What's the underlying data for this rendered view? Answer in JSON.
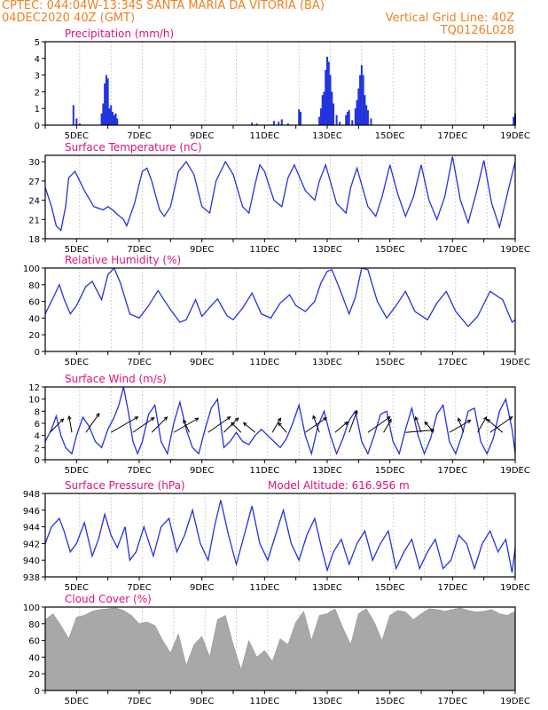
{
  "header": {
    "line1": "CPTEC:   044:04W-13:34S   SANTA MARIA DA VITORIA (BA)",
    "line2_left": "04DEC2020 40Z (GMT)",
    "line2_right": "Vertical Grid Line: 40Z",
    "line3_right": "TQ0126L028"
  },
  "colors": {
    "header": "#f08020",
    "title": "#e0107a",
    "line": "#2233dd",
    "cloud": "#a8a8a8",
    "arrow": "#000000"
  },
  "chart_data": [
    {
      "type": "bar",
      "title": "Precipitation (mm/h)",
      "x_range": [
        "04DEC",
        "19DEC"
      ],
      "x_ticks": [
        "5DEC",
        "7DEC",
        "9DEC",
        "11DEC",
        "13DEC",
        "15DEC",
        "17DEC",
        "19DEC"
      ],
      "ylim": [
        0,
        5
      ],
      "y_ticks": [
        "0",
        "1",
        "2",
        "3",
        "4",
        "5"
      ],
      "x": [
        4.9,
        5.0,
        5.1,
        5.8,
        5.85,
        5.9,
        5.95,
        6.0,
        6.05,
        6.1,
        6.15,
        6.2,
        6.25,
        6.3,
        10.6,
        10.75,
        11.3,
        11.45,
        11.55,
        11.75,
        12.1,
        12.15,
        12.75,
        12.8,
        12.85,
        12.9,
        12.95,
        13.0,
        13.05,
        13.1,
        13.15,
        13.2,
        13.3,
        13.4,
        13.6,
        13.65,
        13.7,
        13.8,
        13.9,
        13.95,
        14.0,
        14.05,
        14.1,
        14.15,
        14.2,
        14.25,
        14.3,
        14.4,
        18.95,
        19.0
      ],
      "values": [
        1.2,
        0.4,
        0.1,
        0.7,
        1.3,
        2.5,
        3.0,
        2.8,
        1.0,
        1.2,
        0.8,
        0.6,
        0.7,
        0.4,
        0.15,
        0.1,
        0.25,
        0.2,
        0.35,
        0.1,
        0.95,
        0.8,
        0.5,
        1.0,
        1.8,
        2.0,
        3.3,
        4.1,
        3.8,
        3.0,
        2.0,
        1.3,
        0.6,
        0.2,
        0.6,
        0.8,
        0.9,
        0.3,
        1.0,
        1.5,
        2.2,
        3.0,
        3.6,
        3.0,
        1.8,
        1.2,
        0.9,
        0.4,
        0.5,
        0.7
      ]
    },
    {
      "type": "line",
      "title": "Surface Temperature (nC)",
      "x_range": [
        "04DEC",
        "19DEC"
      ],
      "x_ticks": [
        "5DEC",
        "7DEC",
        "9DEC",
        "11DEC",
        "13DEC",
        "15DEC",
        "17DEC",
        "19DEC"
      ],
      "ylim": [
        18,
        31
      ],
      "y_ticks": [
        "18",
        "21",
        "24",
        "27",
        "30"
      ],
      "x": [
        4.0,
        4.2,
        4.35,
        4.5,
        4.65,
        4.75,
        4.95,
        5.25,
        5.55,
        5.85,
        6.0,
        6.15,
        6.3,
        6.5,
        6.6,
        6.85,
        7.1,
        7.25,
        7.4,
        7.65,
        7.8,
        8.0,
        8.25,
        8.5,
        8.75,
        9.0,
        9.25,
        9.45,
        9.75,
        10.0,
        10.3,
        10.5,
        10.7,
        10.85,
        11.0,
        11.3,
        11.55,
        11.75,
        11.95,
        12.3,
        12.6,
        12.75,
        12.95,
        13.3,
        13.6,
        13.75,
        13.95,
        14.3,
        14.55,
        14.75,
        15.0,
        15.25,
        15.5,
        15.75,
        16.0,
        16.25,
        16.5,
        16.75,
        17.0,
        17.25,
        17.5,
        17.75,
        18.0,
        18.25,
        18.5,
        18.75,
        19.0
      ],
      "y": [
        26.0,
        23.0,
        20.0,
        19.3,
        23.0,
        27.5,
        28.5,
        25.5,
        23.0,
        22.5,
        23.0,
        22.5,
        21.8,
        21.0,
        20.0,
        23.5,
        28.5,
        29.0,
        27.0,
        22.5,
        21.5,
        23.0,
        28.5,
        30.0,
        28.0,
        23.0,
        22.0,
        27.0,
        30.0,
        28.0,
        23.0,
        22.0,
        26.5,
        29.5,
        28.5,
        24.0,
        23.0,
        27.5,
        29.5,
        25.5,
        24.0,
        27.0,
        29.5,
        23.5,
        22.0,
        26.0,
        29.0,
        23.0,
        21.5,
        24.5,
        29.5,
        25.0,
        21.5,
        24.5,
        29.5,
        24.0,
        21.0,
        24.5,
        30.8,
        24.0,
        20.5,
        25.0,
        30.2,
        23.5,
        19.8,
        25.0,
        30.0
      ]
    },
    {
      "type": "line",
      "title": "Relative Humidity (%)",
      "x_range": [
        "04DEC",
        "19DEC"
      ],
      "x_ticks": [
        "5DEC",
        "7DEC",
        "9DEC",
        "11DEC",
        "13DEC",
        "15DEC",
        "17DEC",
        "19DEC"
      ],
      "ylim": [
        0,
        100
      ],
      "y_ticks": [
        "0",
        "20",
        "40",
        "60",
        "80",
        "100"
      ],
      "x": [
        4.0,
        4.3,
        4.45,
        4.6,
        4.8,
        5.0,
        5.3,
        5.5,
        5.8,
        6.0,
        6.2,
        6.4,
        6.7,
        7.0,
        7.3,
        7.6,
        8.0,
        8.3,
        8.5,
        8.8,
        9.0,
        9.3,
        9.5,
        9.8,
        10.0,
        10.3,
        10.6,
        10.9,
        11.2,
        11.5,
        11.8,
        12.0,
        12.3,
        12.6,
        12.8,
        13.0,
        13.15,
        13.4,
        13.7,
        13.9,
        14.1,
        14.3,
        14.6,
        14.9,
        15.2,
        15.5,
        15.8,
        16.2,
        16.5,
        16.8,
        17.1,
        17.5,
        17.8,
        18.2,
        18.6,
        18.9,
        19.0
      ],
      "y": [
        45.0,
        68.0,
        80.0,
        63.0,
        45.0,
        55.0,
        78.0,
        84.0,
        62.0,
        92.0,
        100.0,
        82.0,
        45.0,
        40.0,
        55.0,
        73.0,
        50.0,
        35.0,
        38.0,
        62.0,
        42.0,
        55.0,
        63.0,
        43.0,
        38.0,
        52.0,
        70.0,
        45.0,
        40.0,
        58.0,
        68.0,
        55.0,
        48.0,
        60.0,
        82.0,
        96.0,
        98.0,
        75.0,
        45.0,
        65.0,
        100.0,
        98.0,
        60.0,
        40.0,
        55.0,
        72.0,
        48.0,
        38.0,
        58.0,
        72.0,
        48.0,
        30.0,
        42.0,
        72.0,
        62.0,
        35.0,
        38.0
      ]
    },
    {
      "type": "line",
      "title": "Surface Wind (m/s)",
      "x_range": [
        "04DEC",
        "19DEC"
      ],
      "x_ticks": [
        "5DEC",
        "7DEC",
        "9DEC",
        "11DEC",
        "13DEC",
        "15DEC",
        "17DEC",
        "19DEC"
      ],
      "ylim": [
        0,
        12
      ],
      "y_ticks": [
        "0",
        "2",
        "4",
        "6",
        "8",
        "10",
        "12"
      ],
      "x": [
        4.0,
        4.2,
        4.35,
        4.5,
        4.65,
        4.85,
        5.0,
        5.2,
        5.4,
        5.6,
        5.8,
        6.0,
        6.2,
        6.35,
        6.5,
        6.65,
        6.8,
        6.95,
        7.1,
        7.3,
        7.5,
        7.7,
        7.9,
        8.1,
        8.3,
        8.5,
        8.7,
        8.9,
        9.1,
        9.3,
        9.5,
        9.7,
        9.9,
        10.1,
        10.3,
        10.5,
        10.7,
        10.9,
        11.1,
        11.3,
        11.5,
        11.7,
        11.9,
        12.1,
        12.3,
        12.5,
        12.7,
        12.9,
        13.1,
        13.3,
        13.5,
        13.7,
        13.9,
        14.1,
        14.3,
        14.5,
        14.7,
        14.9,
        15.1,
        15.3,
        15.5,
        15.7,
        15.9,
        16.1,
        16.3,
        16.5,
        16.7,
        16.9,
        17.1,
        17.3,
        17.5,
        17.7,
        17.9,
        18.1,
        18.3,
        18.5,
        18.7,
        18.9,
        19.0
      ],
      "y": [
        3.0,
        5.0,
        7.2,
        4.0,
        2.0,
        1.0,
        4.0,
        7.0,
        5.5,
        3.0,
        2.0,
        5.0,
        7.0,
        9.0,
        12.0,
        8.0,
        3.0,
        1.0,
        3.0,
        7.5,
        9.0,
        3.0,
        1.0,
        6.0,
        9.5,
        5.0,
        2.0,
        1.0,
        5.0,
        8.5,
        10.0,
        2.0,
        3.0,
        4.5,
        3.0,
        2.5,
        4.0,
        5.0,
        4.0,
        3.0,
        2.0,
        3.5,
        6.0,
        9.0,
        4.0,
        1.0,
        5.5,
        8.0,
        4.0,
        1.0,
        3.5,
        6.5,
        8.0,
        3.0,
        1.0,
        4.0,
        7.5,
        8.0,
        3.0,
        1.0,
        5.0,
        8.5,
        4.0,
        1.0,
        3.5,
        7.5,
        9.0,
        3.0,
        1.0,
        4.0,
        8.0,
        8.5,
        3.0,
        1.0,
        3.5,
        8.0,
        10.0,
        5.0,
        1.0
      ],
      "vectors": {
        "x": [
          4.15,
          4.85,
          5.3,
          6.1,
          6.8,
          7.4,
          8.1,
          8.6,
          9.2,
          9.7,
          10.25,
          10.7,
          11.25,
          11.7,
          12.3,
          12.75,
          13.25,
          13.7,
          14.3,
          14.8,
          15.5,
          16.0,
          16.4,
          16.9,
          17.35,
          17.8,
          18.2,
          18.6
        ],
        "speed": [
          5.5,
          4.5,
          7.0,
          10.0,
          8.0,
          6.5,
          9.0,
          3.5,
          8.5,
          6.0,
          3.5,
          4.0,
          4.5,
          3.0,
          8.0,
          5.0,
          4.5,
          7.0,
          8.5,
          4.0,
          9.0,
          4.5,
          3.5,
          7.5,
          4.0,
          5.0,
          8.5,
          6.0
        ],
        "dir_deg": [
          45,
          100,
          55,
          30,
          35,
          45,
          30,
          115,
          35,
          45,
          135,
          140,
          60,
          130,
          35,
          110,
          40,
          70,
          35,
          60,
          5,
          110,
          130,
          30,
          110,
          60,
          35,
          140
        ]
      }
    },
    {
      "type": "line",
      "title": "Surface Pressure (hPa)",
      "annotation": "Model Altitude: 616.956  m",
      "x_range": [
        "04DEC",
        "19DEC"
      ],
      "x_ticks": [
        "5DEC",
        "7DEC",
        "9DEC",
        "11DEC",
        "13DEC",
        "15DEC",
        "17DEC",
        "19DEC"
      ],
      "ylim": [
        938,
        948
      ],
      "y_ticks": [
        "938",
        "940",
        "942",
        "944",
        "946",
        "948"
      ],
      "x": [
        4.0,
        4.2,
        4.45,
        4.6,
        4.8,
        5.0,
        5.25,
        5.5,
        5.7,
        5.9,
        6.1,
        6.3,
        6.55,
        6.7,
        6.9,
        7.15,
        7.45,
        7.7,
        7.95,
        8.2,
        8.45,
        8.7,
        8.95,
        9.2,
        9.4,
        9.6,
        9.85,
        10.1,
        10.35,
        10.6,
        10.85,
        11.1,
        11.35,
        11.6,
        11.85,
        12.1,
        12.35,
        12.6,
        12.85,
        13.0,
        13.2,
        13.45,
        13.7,
        13.95,
        14.2,
        14.45,
        14.7,
        14.95,
        15.2,
        15.45,
        15.7,
        15.95,
        16.2,
        16.45,
        16.7,
        16.95,
        17.2,
        17.45,
        17.7,
        17.95,
        18.2,
        18.45,
        18.7,
        18.9,
        19.0
      ],
      "y": [
        942.0,
        944.0,
        945.0,
        943.5,
        941.0,
        942.0,
        944.5,
        940.5,
        942.5,
        945.5,
        943.0,
        941.5,
        944.0,
        940.0,
        941.0,
        944.0,
        940.5,
        944.0,
        945.0,
        941.0,
        943.0,
        946.0,
        942.0,
        940.0,
        944.0,
        947.2,
        943.0,
        939.5,
        943.0,
        946.5,
        942.0,
        940.0,
        943.0,
        946.0,
        942.0,
        940.0,
        943.0,
        945.0,
        941.0,
        938.8,
        941.0,
        942.5,
        939.5,
        942.0,
        943.5,
        940.0,
        942.0,
        943.5,
        939.0,
        941.0,
        942.5,
        939.0,
        941.0,
        942.5,
        939.0,
        940.0,
        943.0,
        942.0,
        939.0,
        942.0,
        943.5,
        941.0,
        942.5,
        938.5,
        941.5
      ]
    },
    {
      "type": "area",
      "title": "Cloud Cover (%)",
      "x_range": [
        "04DEC",
        "19DEC"
      ],
      "x_ticks": [
        "5DEC",
        "7DEC",
        "9DEC",
        "11DEC",
        "13DEC",
        "15DEC",
        "17DEC",
        "19DEC"
      ],
      "ylim": [
        0,
        100
      ],
      "y_ticks": [
        "0",
        "20",
        "40",
        "60",
        "80",
        "100"
      ],
      "x": [
        4.0,
        4.25,
        4.5,
        4.75,
        5.0,
        5.25,
        5.5,
        5.75,
        6.0,
        6.25,
        6.5,
        6.75,
        7.0,
        7.25,
        7.5,
        7.75,
        8.0,
        8.25,
        8.5,
        8.75,
        9.0,
        9.25,
        9.5,
        9.75,
        10.0,
        10.25,
        10.5,
        10.75,
        11.0,
        11.25,
        11.5,
        11.75,
        12.0,
        12.25,
        12.5,
        12.75,
        13.0,
        13.25,
        13.5,
        13.75,
        14.0,
        14.25,
        14.5,
        14.75,
        15.0,
        15.25,
        15.5,
        15.75,
        16.0,
        16.25,
        16.5,
        16.75,
        17.0,
        17.25,
        17.5,
        17.75,
        18.0,
        18.25,
        18.5,
        18.75,
        19.0
      ],
      "y": [
        85,
        92,
        78,
        62,
        88,
        90,
        95,
        97,
        98,
        99,
        96,
        90,
        80,
        82,
        78,
        60,
        45,
        68,
        30,
        55,
        65,
        40,
        85,
        90,
        55,
        25,
        60,
        40,
        48,
        35,
        62,
        55,
        82,
        95,
        60,
        90,
        92,
        98,
        75,
        55,
        92,
        98,
        82,
        60,
        90,
        96,
        94,
        85,
        92,
        98,
        97,
        95,
        97,
        99,
        96,
        94,
        95,
        97,
        92,
        90,
        95
      ]
    }
  ]
}
